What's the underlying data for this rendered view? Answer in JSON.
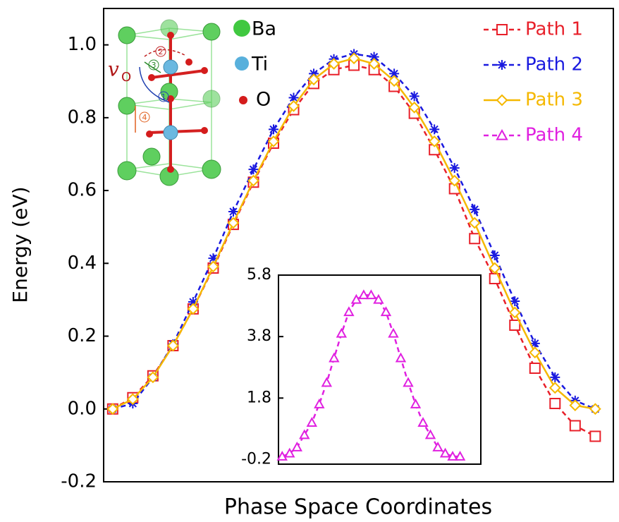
{
  "chart_data": [
    {
      "type": "line",
      "ylabel": "Energy (eV)",
      "xlabel": "Phase Space Coordinates",
      "x": [
        0,
        1,
        2,
        3,
        4,
        5,
        6,
        7,
        8,
        9,
        10,
        11,
        12,
        13,
        14,
        15,
        16,
        17,
        18,
        19,
        20,
        21,
        22,
        23,
        24
      ],
      "xlim": [
        -0.45,
        24.9
      ],
      "ylim": [
        -0.2,
        1.1
      ],
      "yticks": [
        -0.2,
        {
          "value": 0,
          "label": "0.0"
        },
        0.2,
        0.4,
        0.6,
        0.8,
        {
          "value": 1,
          "label": "1.0"
        }
      ],
      "legend": "upper right",
      "series": [
        {
          "name": "Path 1",
          "color": "#e8202a",
          "marker": "square",
          "dash": "dashed",
          "values": [
            0,
            0.031,
            0.091,
            0.174,
            0.275,
            0.387,
            0.507,
            0.623,
            0.73,
            0.822,
            0.894,
            0.932,
            0.944,
            0.932,
            0.886,
            0.812,
            0.712,
            0.605,
            0.468,
            0.358,
            0.23,
            0.112,
            0.015,
            -0.046,
            -0.075
          ]
        },
        {
          "name": "Path 2",
          "color": "#1a1adf",
          "marker": "asterisk",
          "dash": "dashed",
          "values": [
            0,
            0.015,
            0.087,
            0.178,
            0.294,
            0.414,
            0.542,
            0.658,
            0.768,
            0.855,
            0.921,
            0.961,
            0.975,
            0.967,
            0.921,
            0.859,
            0.768,
            0.662,
            0.548,
            0.422,
            0.296,
            0.18,
            0.087,
            0.023,
            0
          ]
        },
        {
          "name": "Path 3",
          "color": "#f5b800",
          "marker": "diamond",
          "dash": "solid",
          "values": [
            0,
            0.027,
            0.087,
            0.174,
            0.275,
            0.391,
            0.511,
            0.627,
            0.735,
            0.832,
            0.905,
            0.948,
            0.963,
            0.948,
            0.901,
            0.828,
            0.735,
            0.627,
            0.511,
            0.387,
            0.265,
            0.155,
            0.058,
            0.01,
            0
          ]
        }
      ],
      "annotations": {
        "species": [
          "Ba",
          "Ti",
          "O"
        ],
        "vacancy": "v",
        "vacancy_sub": "O",
        "steps": [
          "1",
          "2",
          "3",
          "4"
        ]
      }
    },
    {
      "type": "line",
      "x": [
        0,
        1,
        2,
        3,
        4,
        5,
        6,
        7,
        8,
        9,
        10,
        11,
        12,
        13,
        14,
        15,
        16,
        17,
        18,
        19,
        20,
        21,
        22,
        23,
        24
      ],
      "xlim": [
        -0.5,
        26.8
      ],
      "ylim": [
        -0.35,
        5.8
      ],
      "yticks": [
        -0.2,
        1.8,
        3.8,
        5.8
      ],
      "series": [
        {
          "name": "Path 4",
          "color": "#e020e0",
          "marker": "triangle",
          "dash": "dashed",
          "values": [
            -0.1,
            0,
            0.2,
            0.6,
            1.0,
            1.6,
            2.3,
            3.1,
            3.9,
            4.6,
            5.0,
            5.15,
            5.15,
            5.0,
            4.6,
            3.9,
            3.1,
            2.3,
            1.6,
            1.0,
            0.6,
            0.2,
            0,
            -0.1,
            -0.1
          ]
        }
      ]
    }
  ]
}
